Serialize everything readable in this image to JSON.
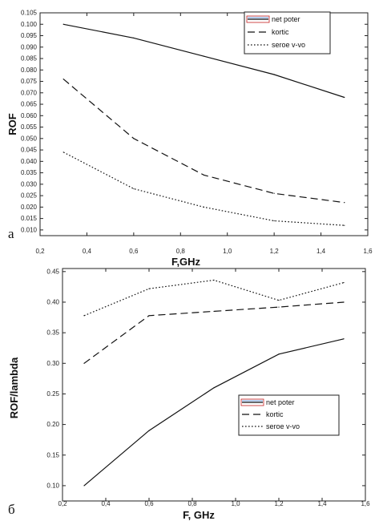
{
  "chart_data": [
    {
      "type": "line",
      "panel_label": "а",
      "xlabel": "F,GHz",
      "ylabel": "ROF",
      "xlim": [
        0.2,
        1.6
      ],
      "ylim": [
        0.0075,
        0.105
      ],
      "x_ticks": [
        "0,2",
        "0,4",
        "0,6",
        "0,8",
        "1,0",
        "1,2",
        "1,4",
        "1,6"
      ],
      "y_ticks": [
        "0.010",
        "0.015",
        "0.020",
        "0.025",
        "0.030",
        "0.035",
        "0.040",
        "0.045",
        "0.050",
        "0.055",
        "0.060",
        "0.065",
        "0.070",
        "0.075",
        "0.080",
        "0.085",
        "0.090",
        "0.095",
        "0.100",
        "0.105"
      ],
      "legend_position": "top-right",
      "series": [
        {
          "name": "net poter",
          "style": "solid",
          "color": "#111111",
          "x": [
            0.3,
            0.6,
            0.9,
            1.2,
            1.5
          ],
          "y": [
            0.1,
            0.094,
            0.086,
            0.078,
            0.068
          ]
        },
        {
          "name": "kortic",
          "style": "dashed",
          "color": "#111111",
          "x": [
            0.3,
            0.6,
            0.9,
            1.2,
            1.5
          ],
          "y": [
            0.076,
            0.05,
            0.034,
            0.026,
            0.022
          ]
        },
        {
          "name": "seroe v-vo",
          "style": "dotted",
          "color": "#111111",
          "x": [
            0.3,
            0.6,
            0.9,
            1.2,
            1.5
          ],
          "y": [
            0.044,
            0.028,
            0.02,
            0.014,
            0.012
          ]
        }
      ]
    },
    {
      "type": "line",
      "panel_label": "б",
      "xlabel": "F, GHz",
      "ylabel": "ROF/lambda",
      "xlim": [
        0.2,
        1.6
      ],
      "ylim": [
        0.075,
        0.455
      ],
      "x_ticks": [
        "0,2",
        "0,4",
        "0,6",
        "0,8",
        "1,0",
        "1,2",
        "1,4",
        "1,6"
      ],
      "y_ticks": [
        "0.10",
        "0.15",
        "0.20",
        "0.25",
        "0.30",
        "0.35",
        "0.40",
        "0.45"
      ],
      "legend_position": "lower-right",
      "series": [
        {
          "name": "net poter",
          "style": "solid",
          "color": "#111111",
          "x": [
            0.3,
            0.6,
            0.9,
            1.2,
            1.5
          ],
          "y": [
            0.1,
            0.19,
            0.26,
            0.315,
            0.34
          ]
        },
        {
          "name": "kortic",
          "style": "dashed",
          "color": "#111111",
          "x": [
            0.3,
            0.6,
            0.9,
            1.2,
            1.5
          ],
          "y": [
            0.3,
            0.378,
            0.385,
            0.392,
            0.4
          ]
        },
        {
          "name": "seroe v-vo",
          "style": "dotted",
          "color": "#111111",
          "x": [
            0.3,
            0.6,
            0.9,
            1.2,
            1.5
          ],
          "y": [
            0.378,
            0.422,
            0.436,
            0.403,
            0.432
          ]
        }
      ]
    }
  ],
  "legend_swatch_colors": {
    "net_poter_outline": "#c41e1e",
    "net_poter_line": "#3a7bd5"
  }
}
